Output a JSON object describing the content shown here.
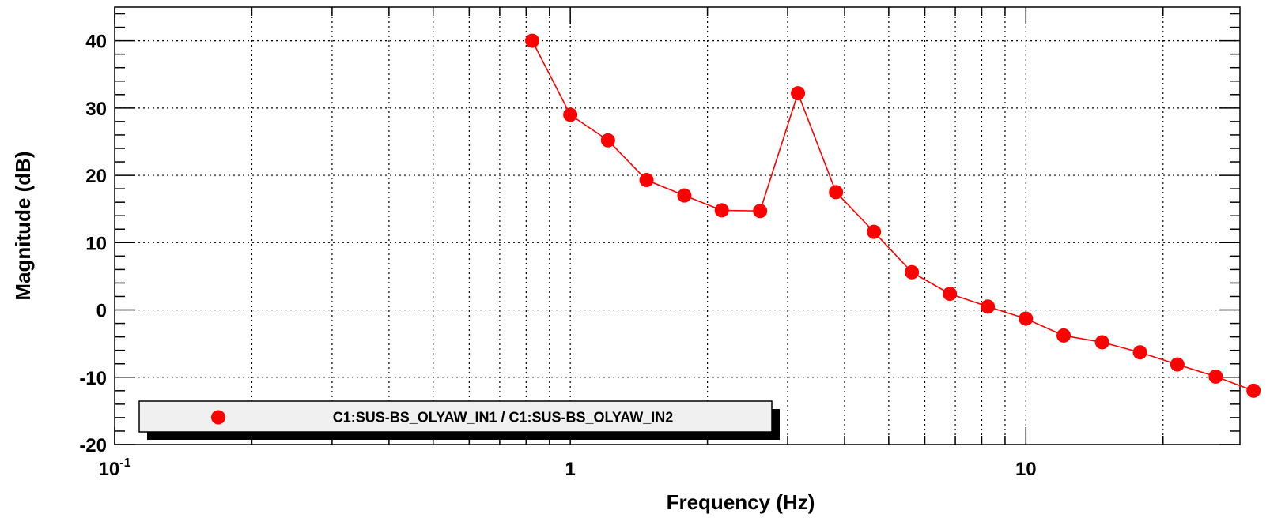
{
  "chart_data": {
    "type": "line",
    "xlabel": "Frequency (Hz)",
    "ylabel": "Magnitude (dB)",
    "xscale": "log",
    "xlim": [
      0.1,
      29.5
    ],
    "ylim": [
      -20,
      45
    ],
    "grid": true,
    "x_tick_labels": [
      {
        "value": 0.1,
        "base": "10",
        "exp": "-1"
      },
      {
        "value": 1,
        "base": "1",
        "exp": ""
      },
      {
        "value": 10,
        "base": "10",
        "exp": ""
      }
    ],
    "y_ticks": [
      -20,
      -10,
      0,
      10,
      20,
      30,
      40
    ],
    "legend": {
      "placement": "bottom-left",
      "entries": [
        {
          "label": "C1:SUS-BS_OLYAW_IN1 / C1:SUS-BS_OLYAW_IN2",
          "color": "#ff0000",
          "marker": "circle"
        }
      ]
    },
    "series": [
      {
        "name": "C1:SUS-BS_OLYAW_IN1 / C1:SUS-BS_OLYAW_IN2",
        "color": "#ff0000",
        "x": [
          0.825,
          1.0,
          1.21,
          1.47,
          1.78,
          2.15,
          2.61,
          3.16,
          3.83,
          4.64,
          5.62,
          6.81,
          8.25,
          10.0,
          12.1,
          14.7,
          17.8,
          21.5,
          26.1,
          31.6
        ],
        "y": [
          40.0,
          29.0,
          25.2,
          19.3,
          17.0,
          14.8,
          14.7,
          32.2,
          17.5,
          11.6,
          5.6,
          2.4,
          0.5,
          -1.3,
          -3.8,
          -4.8,
          -6.3,
          -8.1,
          -9.9,
          -12.0
        ]
      }
    ]
  }
}
